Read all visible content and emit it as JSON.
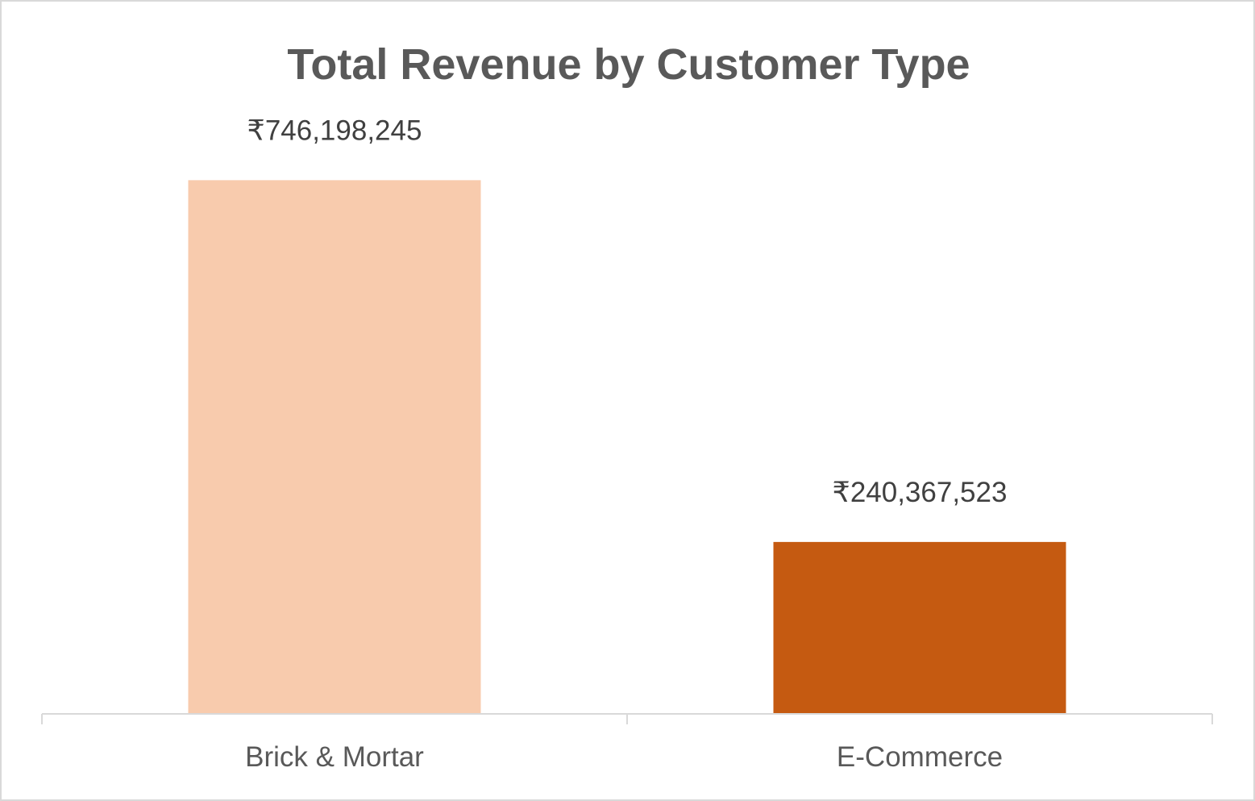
{
  "chart_data": {
    "type": "bar",
    "title": "Total Revenue by Customer Type",
    "categories": [
      "Brick & Mortar",
      "E-Commerce"
    ],
    "values": [
      746198245,
      240367523
    ],
    "data_labels": [
      "₹746,198,245",
      "₹240,367,523"
    ],
    "colors": [
      "#F8CBAD",
      "#C55A11"
    ],
    "ylim": [
      0,
      750000000
    ],
    "xlabel": "",
    "ylabel": "",
    "grid": false,
    "legend": "none"
  }
}
